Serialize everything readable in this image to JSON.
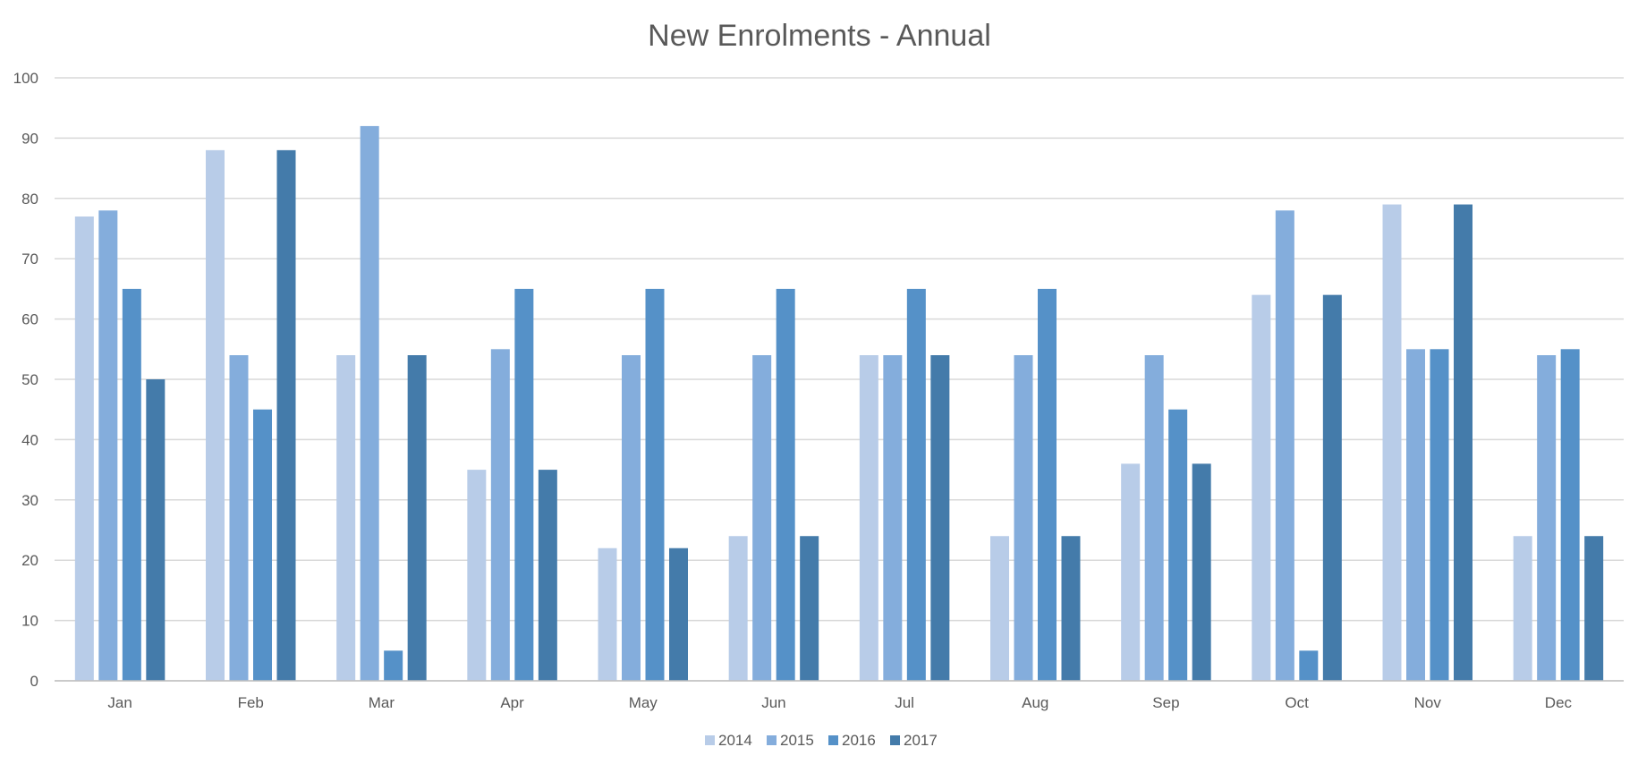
{
  "chart_data": {
    "type": "bar",
    "title": "New Enrolments - Annual",
    "xlabel": "",
    "ylabel": "",
    "ylim": [
      0,
      100
    ],
    "yticks": [
      0,
      10,
      20,
      30,
      40,
      50,
      60,
      70,
      80,
      90,
      100
    ],
    "grid": true,
    "legend_position": "bottom",
    "categories": [
      "Jan",
      "Feb",
      "Mar",
      "Apr",
      "May",
      "Jun",
      "Jul",
      "Aug",
      "Sep",
      "Oct",
      "Nov",
      "Dec"
    ],
    "series": [
      {
        "name": "2014",
        "color": "#B8CCE8",
        "values": [
          77,
          88,
          54,
          35,
          22,
          24,
          54,
          24,
          36,
          64,
          79,
          24
        ]
      },
      {
        "name": "2015",
        "color": "#84ADDC",
        "values": [
          78,
          54,
          92,
          55,
          54,
          54,
          54,
          54,
          54,
          78,
          55,
          54
        ]
      },
      {
        "name": "2016",
        "color": "#5591C8",
        "values": [
          65,
          45,
          5,
          65,
          65,
          65,
          65,
          65,
          45,
          5,
          55,
          55
        ]
      },
      {
        "name": "2017",
        "color": "#447BAA",
        "values": [
          50,
          88,
          54,
          35,
          22,
          24,
          54,
          24,
          36,
          64,
          79,
          24
        ]
      }
    ]
  }
}
